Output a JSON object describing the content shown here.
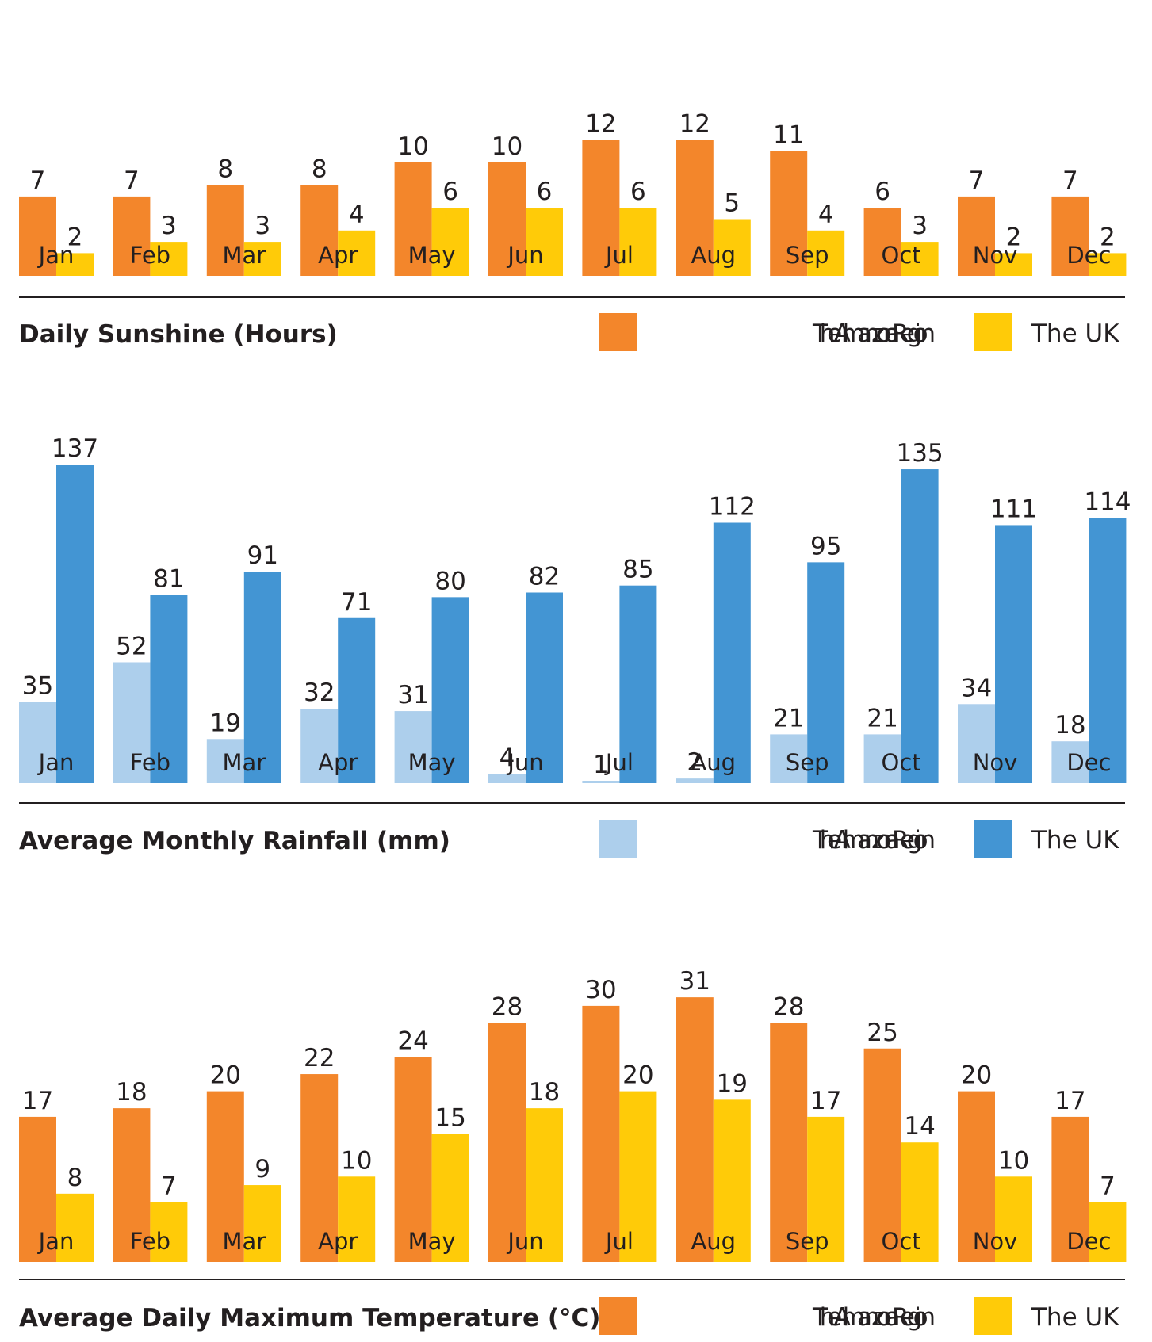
{
  "chart_data": [
    {
      "type": "bar",
      "title": "Daily Sunshine (Hours)",
      "categories": [
        "Jan",
        "Feb",
        "Mar",
        "Apr",
        "May",
        "Jun",
        "Jul",
        "Aug",
        "Sep",
        "Oct",
        "Nov",
        "Dec"
      ],
      "series": [
        {
          "name": "The Almanzora Region",
          "color": "#F3862B",
          "values": [
            7,
            7,
            8,
            8,
            10,
            10,
            12,
            12,
            11,
            6,
            7,
            7
          ]
        },
        {
          "name": "The UK",
          "color": "#FFCB08",
          "values": [
            2,
            3,
            3,
            4,
            6,
            6,
            6,
            5,
            4,
            3,
            2,
            2
          ]
        }
      ],
      "xlabel": "",
      "ylabel": "",
      "ylim": [
        0,
        12
      ],
      "grid": false,
      "legend": "bottom-right"
    },
    {
      "type": "bar",
      "title": "Average Monthly Rainfall (mm)",
      "categories": [
        "Jan",
        "Feb",
        "Mar",
        "Apr",
        "May",
        "Jun",
        "Jul",
        "Aug",
        "Sep",
        "Oct",
        "Nov",
        "Dec"
      ],
      "series": [
        {
          "name": "The Almanzora Region",
          "color": "#ADCFEC",
          "values": [
            35,
            52,
            19,
            32,
            31,
            4,
            1,
            2,
            21,
            21,
            34,
            18
          ]
        },
        {
          "name": "The UK",
          "color": "#4395D3",
          "values": [
            137,
            81,
            91,
            71,
            80,
            82,
            85,
            112,
            95,
            135,
            111,
            114
          ]
        }
      ],
      "xlabel": "",
      "ylabel": "",
      "ylim": [
        0,
        137
      ],
      "grid": false,
      "legend": "bottom-right"
    },
    {
      "type": "bar",
      "title": "Average Daily Maximum Temperature (°C)",
      "categories": [
        "Jan",
        "Feb",
        "Mar",
        "Apr",
        "May",
        "Jun",
        "Jul",
        "Aug",
        "Sep",
        "Oct",
        "Nov",
        "Dec"
      ],
      "series": [
        {
          "name": "The Almanzora Region",
          "color": "#F3862B",
          "values": [
            17,
            18,
            20,
            22,
            24,
            28,
            30,
            31,
            28,
            25,
            20,
            17
          ]
        },
        {
          "name": "The UK",
          "color": "#FFCB08",
          "values": [
            8,
            7,
            9,
            10,
            15,
            18,
            20,
            19,
            17,
            14,
            10,
            7
          ]
        }
      ],
      "xlabel": "",
      "ylabel": "",
      "ylim": [
        0,
        31
      ],
      "grid": false,
      "legend": "bottom-right"
    }
  ]
}
